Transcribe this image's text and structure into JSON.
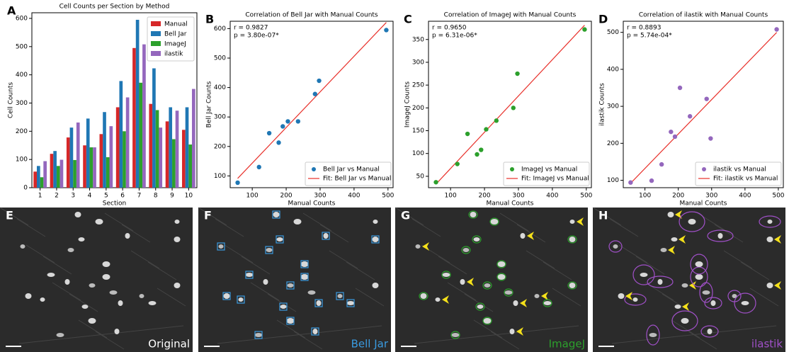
{
  "chart_data": [
    {
      "type": "bar",
      "panel_label": "A",
      "title": "Cell Counts per Section by Method",
      "x_label": "Section",
      "y_label": "Cell Counts",
      "categories": [
        "1",
        "2",
        "3",
        "4",
        "5",
        "6",
        "7",
        "8",
        "9",
        "10"
      ],
      "series": [
        {
          "name": "Manual",
          "color": "#d62728",
          "values": [
            57,
            120,
            178,
            150,
            190,
            285,
            495,
            297,
            235,
            205
          ]
        },
        {
          "name": "Bell Jar",
          "color": "#1f77b4",
          "values": [
            77,
            130,
            213,
            245,
            268,
            378,
            595,
            423,
            285,
            285
          ]
        },
        {
          "name": "ImageJ",
          "color": "#2ca02c",
          "values": [
            37,
            77,
            98,
            143,
            108,
            200,
            372,
            275,
            172,
            153
          ]
        },
        {
          "name": "ilastik",
          "color": "#9467bd",
          "values": [
            94,
            99,
            231,
            143,
            218,
            320,
            508,
            213,
            273,
            350
          ]
        }
      ],
      "ylim": [
        0,
        620
      ],
      "yticks": [
        0,
        100,
        200,
        300,
        400,
        500,
        600
      ],
      "legend": "upper-right"
    },
    {
      "type": "scatter",
      "panel_label": "B",
      "title": "Correlation of Bell Jar with Manual Counts",
      "x_label": "Manual Counts",
      "y_label": "Bell Jar Counts",
      "annotations": [
        "r = 0.9827",
        "p = 3.80e-07*"
      ],
      "x": [
        57,
        120,
        178,
        150,
        190,
        285,
        495,
        297,
        235,
        205
      ],
      "series": [
        {
          "name": "Bell Jar vs Manual",
          "color": "#1f77b4",
          "values": [
            77,
            130,
            213,
            245,
            268,
            378,
            595,
            423,
            285,
            285
          ]
        }
      ],
      "fit": {
        "name": "Fit: Bell Jar vs Manual",
        "color": "#e8302a"
      },
      "xlim": [
        35,
        515
      ],
      "xticks": [
        100,
        200,
        300,
        400,
        500
      ],
      "ylim": [
        60,
        625
      ],
      "yticks": [
        100,
        200,
        300,
        400,
        500,
        600
      ],
      "legend": "lower-right"
    },
    {
      "type": "scatter",
      "panel_label": "C",
      "title": "Correlation of ImageJ with Manual Counts",
      "x_label": "Manual Counts",
      "y_label": "ImageJ Counts",
      "annotations": [
        "r = 0.9650",
        "p = 6.31e-06*"
      ],
      "x": [
        57,
        120,
        178,
        150,
        190,
        285,
        495,
        297,
        235,
        205
      ],
      "series": [
        {
          "name": "ImageJ vs Manual",
          "color": "#2ca02c",
          "values": [
            37,
            77,
            98,
            143,
            108,
            200,
            372,
            275,
            172,
            153
          ]
        }
      ],
      "fit": {
        "name": "Fit: ImageJ vs Manual",
        "color": "#e8302a"
      },
      "xlim": [
        35,
        515
      ],
      "xticks": [
        100,
        200,
        300,
        400,
        500
      ],
      "ylim": [
        25,
        390
      ],
      "yticks": [
        50,
        100,
        150,
        200,
        250,
        300,
        350
      ],
      "legend": "lower-right"
    },
    {
      "type": "scatter",
      "panel_label": "D",
      "title": "Correlation of ilastik with Manual Counts",
      "x_label": "Manual Counts",
      "y_label": "ilastik Counts",
      "annotations": [
        "r = 0.8893",
        "p = 5.74e-04*"
      ],
      "x": [
        57,
        120,
        178,
        150,
        190,
        285,
        495,
        297,
        235,
        205
      ],
      "series": [
        {
          "name": "ilastik vs Manual",
          "color": "#9467bd",
          "values": [
            94,
            99,
            231,
            143,
            218,
            320,
            508,
            213,
            273,
            350
          ]
        }
      ],
      "fit": {
        "name": "Fit: ilastik vs Manual",
        "color": "#e8302a"
      },
      "xlim": [
        35,
        515
      ],
      "xticks": [
        100,
        200,
        300,
        400,
        500
      ],
      "ylim": [
        80,
        530
      ],
      "yticks": [
        100,
        200,
        300,
        400,
        500
      ],
      "legend": "lower-right"
    }
  ],
  "images": [
    {
      "panel_label": "E",
      "caption": "Original",
      "color": "#ffffff"
    },
    {
      "panel_label": "F",
      "caption": "Bell Jar",
      "color": "#3a9be0"
    },
    {
      "panel_label": "G",
      "caption": "ImageJ",
      "color": "#2ca02c"
    },
    {
      "panel_label": "H",
      "caption": "ilastik",
      "color": "#a050c8"
    }
  ]
}
